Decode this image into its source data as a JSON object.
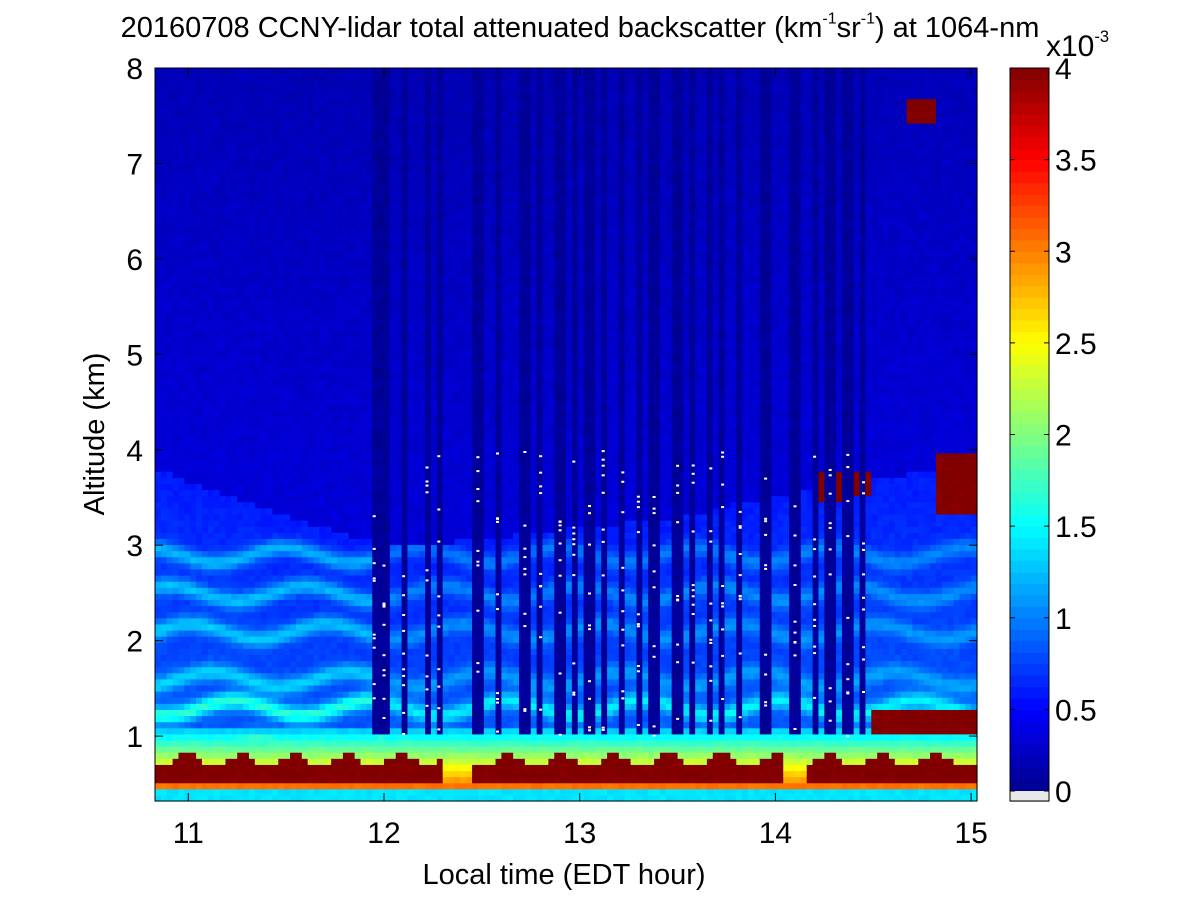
{
  "chart_data": {
    "type": "heatmap",
    "title": {
      "date": "20160708",
      "text_before_units": "CCNY-lidar total attenuated backscatter (km",
      "exp1": "-1",
      "mid": "sr",
      "exp2": "-1",
      "text_after_units": ") at 1064-nm"
    },
    "xlabel": "Local time (EDT hour)",
    "ylabel": "Altitude (km)",
    "xlim": [
      10.83,
      15.03
    ],
    "ylim": [
      0.32,
      8.0
    ],
    "x_ticks": [
      {
        "value": 11,
        "label": "11"
      },
      {
        "value": 12,
        "label": "12"
      },
      {
        "value": 13,
        "label": "13"
      },
      {
        "value": 14,
        "label": "14"
      },
      {
        "value": 15,
        "label": "15"
      }
    ],
    "y_ticks": [
      {
        "value": 1,
        "label": "1"
      },
      {
        "value": 2,
        "label": "2"
      },
      {
        "value": 3,
        "label": "3"
      },
      {
        "value": 4,
        "label": "4"
      },
      {
        "value": 5,
        "label": "5"
      },
      {
        "value": 6,
        "label": "6"
      },
      {
        "value": 7,
        "label": "7"
      },
      {
        "value": 8,
        "label": "8"
      }
    ],
    "colorbar": {
      "colormap": "jet",
      "range": [
        0,
        4
      ],
      "multiplier_base": "x10",
      "multiplier_exp": "-3",
      "ticks": [
        {
          "value": 0,
          "label": "0"
        },
        {
          "value": 0.5,
          "label": "0.5"
        },
        {
          "value": 1,
          "label": "1"
        },
        {
          "value": 1.5,
          "label": "1.5"
        },
        {
          "value": 2,
          "label": "2"
        },
        {
          "value": 2.5,
          "label": "2.5"
        },
        {
          "value": 3,
          "label": "3"
        },
        {
          "value": 3.5,
          "label": "3.5"
        },
        {
          "value": 4,
          "label": "4"
        }
      ]
    },
    "grid": false,
    "features": {
      "surface_layer": {
        "top_km": 0.75,
        "value": 4
      },
      "boundary_layer_top_early": {
        "x": [
          10.83,
          11.5,
          12.0
        ],
        "top_km": [
          3.8,
          3.3,
          3.0
        ]
      },
      "aerosol_bands_km": [
        0.9,
        1.3,
        1.6,
        2.1,
        2.5,
        2.9
      ],
      "clouds": [
        {
          "x_start": 14.18,
          "x_end": 14.35,
          "bottom_km": 3.45,
          "top_km": 3.8,
          "value": 4
        },
        {
          "x_start": 14.38,
          "x_end": 14.5,
          "bottom_km": 3.55,
          "top_km": 3.8,
          "value": 4
        },
        {
          "x_start": 14.82,
          "x_end": 15.03,
          "bottom_km": 3.3,
          "top_km": 3.95,
          "value": 4
        },
        {
          "x_start": 14.67,
          "x_end": 14.82,
          "bottom_km": 7.4,
          "top_km": 7.7,
          "value": 4
        },
        {
          "x_start": 14.5,
          "x_end": 15.03,
          "bottom_km": 1.05,
          "top_km": 1.25,
          "value": 4
        }
      ],
      "dropout_times": [
        11.95,
        12.0,
        12.1,
        12.22,
        12.28,
        12.48,
        12.58,
        12.72,
        12.8,
        12.9,
        12.97,
        13.05,
        13.12,
        13.22,
        13.3,
        13.38,
        13.5,
        13.58,
        13.67,
        13.73,
        13.82,
        13.95,
        14.1,
        14.2,
        14.28,
        14.37,
        14.45
      ]
    }
  }
}
